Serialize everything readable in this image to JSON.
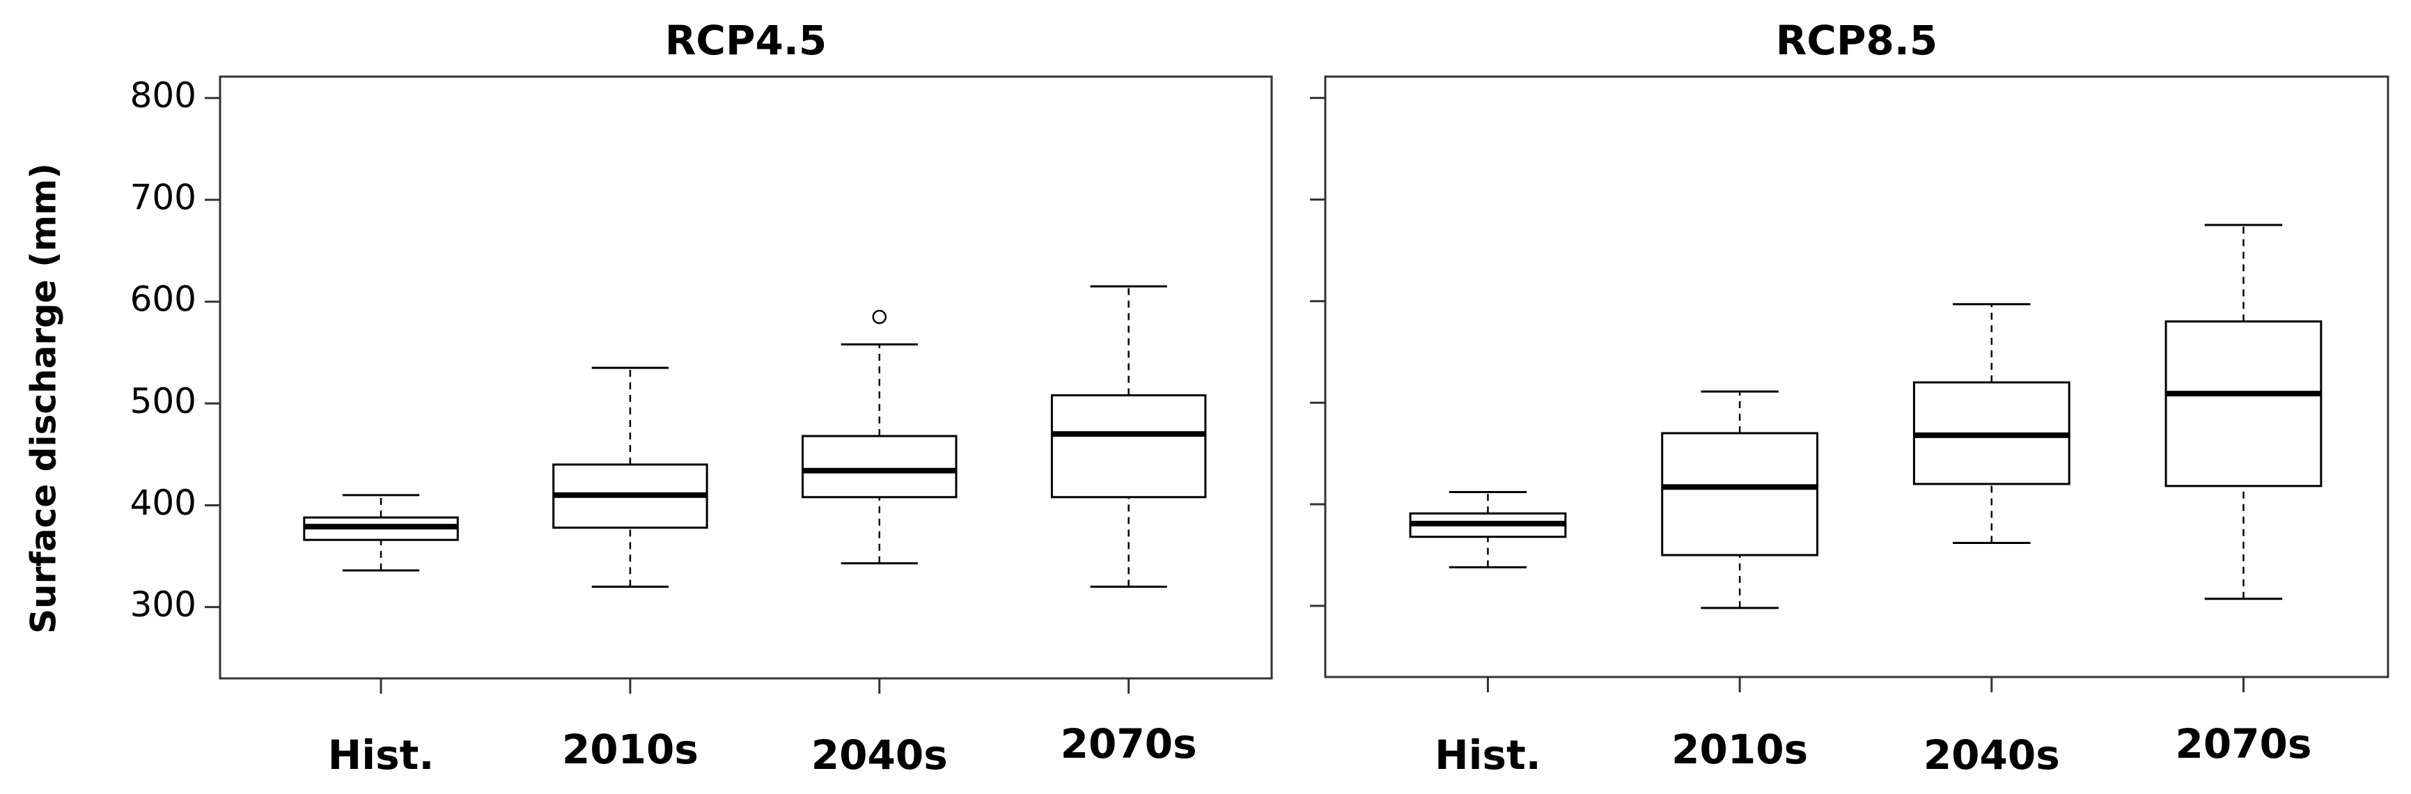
{
  "chart_data": [
    {
      "type": "box",
      "title": "RCP4.5",
      "y_label": "Surface discharge (mm)",
      "categories": [
        "Hist.",
        "2010s",
        "2040s",
        "2070s"
      ],
      "whisker_low": [
        336,
        320,
        343,
        320
      ],
      "q1": [
        366,
        378,
        408,
        408
      ],
      "median": [
        379,
        410,
        434,
        470
      ],
      "q3": [
        388,
        440,
        468,
        508
      ],
      "whisker_high": [
        410,
        535,
        558,
        615
      ],
      "outliers": [
        [],
        [],
        [
          585
        ],
        []
      ],
      "ylim": [
        230,
        821
      ],
      "yticks": [
        300,
        400,
        500,
        600,
        700,
        800
      ],
      "show_tick_labels": true,
      "color": "#000000"
    },
    {
      "type": "box",
      "title": "RCP8.5",
      "categories": [
        "Hist.",
        "2010s",
        "2040s",
        "2070s"
      ],
      "whisker_low": [
        338,
        298,
        362,
        307
      ],
      "q1": [
        368,
        350,
        420,
        418
      ],
      "median": [
        381,
        417,
        468,
        509
      ],
      "q3": [
        391,
        470,
        520,
        580
      ],
      "whisker_high": [
        412,
        511,
        597,
        675
      ],
      "outliers": [
        [],
        [],
        [],
        []
      ],
      "ylim": [
        230,
        821
      ],
      "yticks": [
        300,
        400,
        500,
        600,
        700,
        800
      ],
      "show_tick_labels": false,
      "color": "#000000"
    }
  ]
}
